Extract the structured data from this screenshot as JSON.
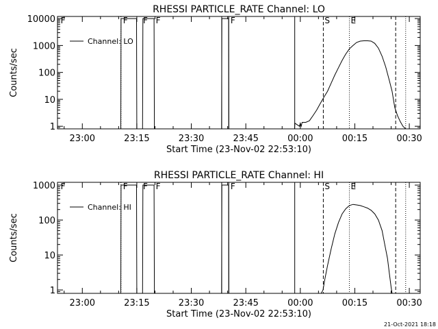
{
  "footer_timestamp": "21-Oct-2021 18:18",
  "chart_data": [
    {
      "type": "line",
      "title": "RHESSI PARTICLE_RATE Channel: LO",
      "xlabel": "Start Time (23-Nov-02 22:53:10)",
      "ylabel": "Counts/sec",
      "yscale": "log",
      "xlim": [
        "22:53:10",
        "00:33:00"
      ],
      "ylim": [
        0.8,
        12000
      ],
      "x_ticks": [
        "23:00",
        "23:15",
        "23:30",
        "23:45",
        "00:00",
        "00:15",
        "00:30"
      ],
      "y_ticks": [
        "1",
        "10",
        "100",
        "1000",
        "10000"
      ],
      "legend": {
        "placement": "top-left",
        "label": "Channel: LO"
      },
      "flag_labels": [
        "F",
        "F",
        "F",
        "F",
        "F",
        "S",
        "E"
      ],
      "series": [
        {
          "name": "Channel: LO",
          "x": [
            "22:53:10",
            "23:10:35",
            "23:10:40",
            "23:14:55",
            "23:15:00",
            "23:16:35",
            "23:16:40",
            "23:19:45",
            "23:19:50",
            "23:38:20",
            "23:38:25",
            "23:40:15",
            "23:40:20",
            "23:58:25",
            "23:58:30",
            "23:59:45",
            "00:00:00",
            "00:00:15",
            "00:00:30",
            "00:01:30",
            "00:02:30",
            "00:03:30",
            "00:04:30",
            "00:05:30",
            "00:06:30",
            "00:07:30",
            "00:08:30",
            "00:09:30",
            "00:10:30",
            "00:11:30",
            "00:12:30",
            "00:13:30",
            "00:14:30",
            "00:15:30",
            "00:16:30",
            "00:17:30",
            "00:18:30",
            "00:19:30",
            "00:20:30",
            "00:21:30",
            "00:22:30",
            "00:23:30",
            "00:24:30",
            "00:25:15",
            "00:26:00",
            "00:26:45",
            "00:27:30",
            "00:28:15",
            "00:29:00"
          ],
          "y": [
            0.8,
            0.8,
            10000,
            10000,
            0.8,
            0.8,
            10000,
            10000,
            0.8,
            0.8,
            10000,
            10000,
            0.8,
            0.8,
            1.3,
            1,
            1.3,
            1,
            1.4,
            1.4,
            1.6,
            2.5,
            4,
            7,
            12,
            20,
            40,
            80,
            150,
            280,
            480,
            750,
            1000,
            1300,
            1450,
            1500,
            1500,
            1450,
            1200,
            800,
            400,
            160,
            50,
            20,
            5,
            2.5,
            1.5,
            1,
            0.8
          ]
        }
      ]
    },
    {
      "type": "line",
      "title": "RHESSI PARTICLE_RATE Channel: HI",
      "xlabel": "Start Time (23-Nov-02 22:53:10)",
      "ylabel": "Counts/sec",
      "yscale": "log",
      "xlim": [
        "22:53:10",
        "00:33:00"
      ],
      "ylim": [
        0.8,
        1200
      ],
      "x_ticks": [
        "23:00",
        "23:15",
        "23:30",
        "23:45",
        "00:00",
        "00:15",
        "00:30"
      ],
      "y_ticks": [
        "1",
        "10",
        "100",
        "1000"
      ],
      "legend": {
        "placement": "top-left",
        "label": "Channel: HI"
      },
      "flag_labels": [
        "F",
        "F",
        "F",
        "F",
        "F",
        "S",
        "E"
      ],
      "series": [
        {
          "name": "Channel: HI",
          "x": [
            "22:53:10",
            "23:10:35",
            "23:10:40",
            "23:14:55",
            "23:15:00",
            "23:16:35",
            "23:16:40",
            "23:19:45",
            "23:19:50",
            "23:38:20",
            "23:38:25",
            "23:40:15",
            "23:40:20",
            "00:05:45",
            "00:06:15",
            "00:06:45",
            "00:07:30",
            "00:08:30",
            "00:09:30",
            "00:10:30",
            "00:11:30",
            "00:12:30",
            "00:13:30",
            "00:14:30",
            "00:15:30",
            "00:16:30",
            "00:17:30",
            "00:18:30",
            "00:19:30",
            "00:20:30",
            "00:21:30",
            "00:22:30",
            "00:23:15",
            "00:24:00",
            "00:24:30",
            "00:25:00",
            "00:25:15"
          ],
          "y": [
            0.8,
            0.8,
            1000,
            1000,
            0.8,
            0.8,
            1000,
            1000,
            0.8,
            0.8,
            1000,
            1000,
            0.8,
            0.8,
            1,
            2,
            5,
            15,
            40,
            85,
            150,
            210,
            260,
            280,
            270,
            260,
            240,
            220,
            190,
            150,
            100,
            50,
            20,
            8,
            3,
            1.2,
            0.8
          ]
        }
      ]
    }
  ]
}
